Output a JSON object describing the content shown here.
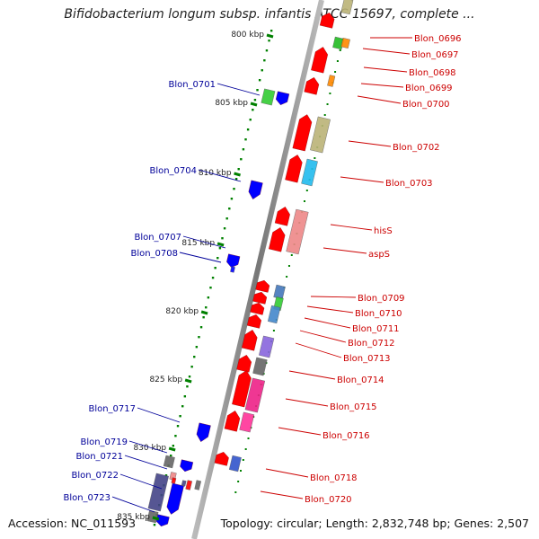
{
  "title": "Bifidobacterium longum subsp. infantis ATCC 15697, complete ...",
  "footer": {
    "accession": "Accession: NC_011593",
    "topology": "Topology: circular; Length: 2,832,748 bp; Genes: 2,507"
  },
  "kbp_labels": [
    "800 kbp",
    "805 kbp",
    "810 kbp",
    "815 kbp",
    "820 kbp",
    "825 kbp",
    "830 kbp",
    "835 kbp"
  ],
  "genes_right": [
    "Blon_0696",
    "Blon_0697",
    "Blon_0698",
    "Blon_0699",
    "Blon_0700",
    "Blon_0702",
    "Blon_0703",
    "hisS",
    "aspS",
    "Blon_0709",
    "Blon_0710",
    "Blon_0711",
    "Blon_0712",
    "Blon_0713",
    "Blon_0714",
    "Blon_0715",
    "Blon_0716",
    "Blon_0718",
    "Blon_0720"
  ],
  "genes_left": [
    "Blon_0701",
    "Blon_0704",
    "Blon_0707",
    "Blon_0708",
    "Blon_0717",
    "Blon_0719",
    "Blon_0721",
    "Blon_0722",
    "Blon_0723"
  ],
  "colors": {
    "forward_strand": "#ff0000",
    "reverse_strand": "#0000ff",
    "right_label": "#cc0000",
    "left_label": "#000099",
    "backbone": "#888888",
    "ticks": "#008000"
  }
}
